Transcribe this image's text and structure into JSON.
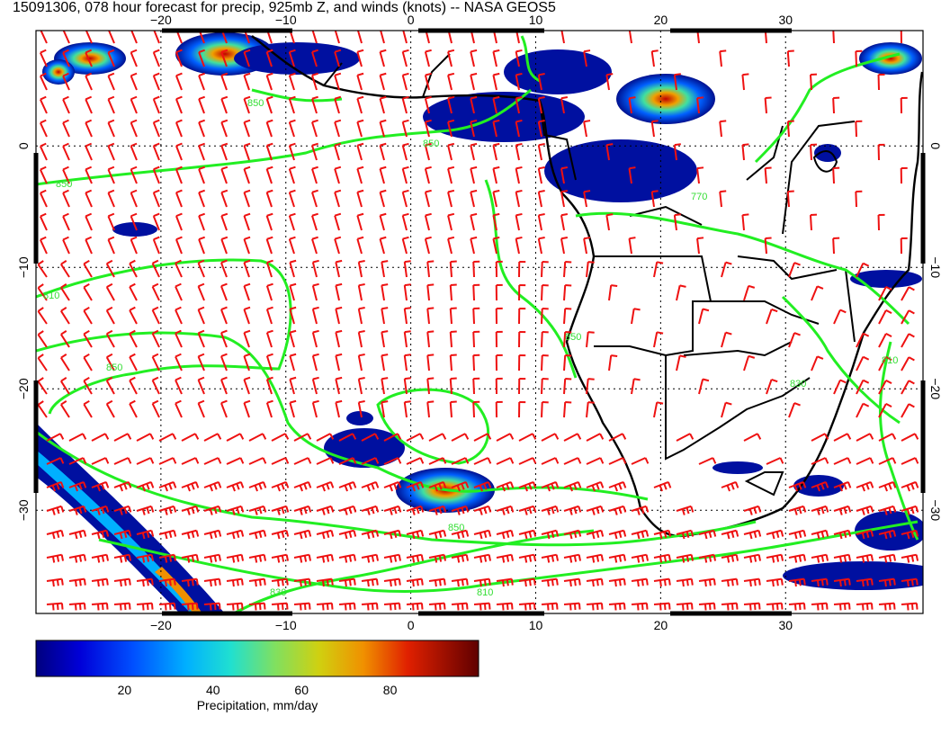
{
  "title": "15091306, 078 hour forecast for precip, 925mb Z, and winds (knots) -- NASA GEOS5",
  "map": {
    "lon_range": [
      -30,
      41
    ],
    "lat_range": [
      -38.5,
      9.5
    ],
    "lon_ticks": [
      -20,
      -10,
      0,
      10,
      20,
      30
    ],
    "lat_ticks": [
      0,
      -10,
      -20,
      -30
    ],
    "lon_tick_labels": [
      "−20",
      "−10",
      "0",
      "10",
      "20",
      "30"
    ],
    "lat_tick_labels": [
      "0",
      "−10",
      "−20",
      "−30"
    ],
    "grid": true,
    "colors": {
      "coastline": "#000000",
      "contour": "#22ee22",
      "wind_barb": "#ee1111",
      "grid": "#000000"
    },
    "contour_labels": [
      "850",
      "850",
      "850",
      "810",
      "850",
      "850",
      "830",
      "810",
      "770",
      "850",
      "830",
      "810"
    ]
  },
  "colorbar": {
    "label": "Precipitation, mm/day",
    "ticks": [
      "20",
      "40",
      "60",
      "80"
    ],
    "tick_values": [
      20,
      40,
      60,
      80
    ],
    "range": [
      0,
      100
    ],
    "colors": [
      "#00007f",
      "#0000ff",
      "#0080ff",
      "#00e0e0",
      "#40e080",
      "#c0d020",
      "#e0a000",
      "#e05000",
      "#c00000",
      "#600000"
    ]
  }
}
